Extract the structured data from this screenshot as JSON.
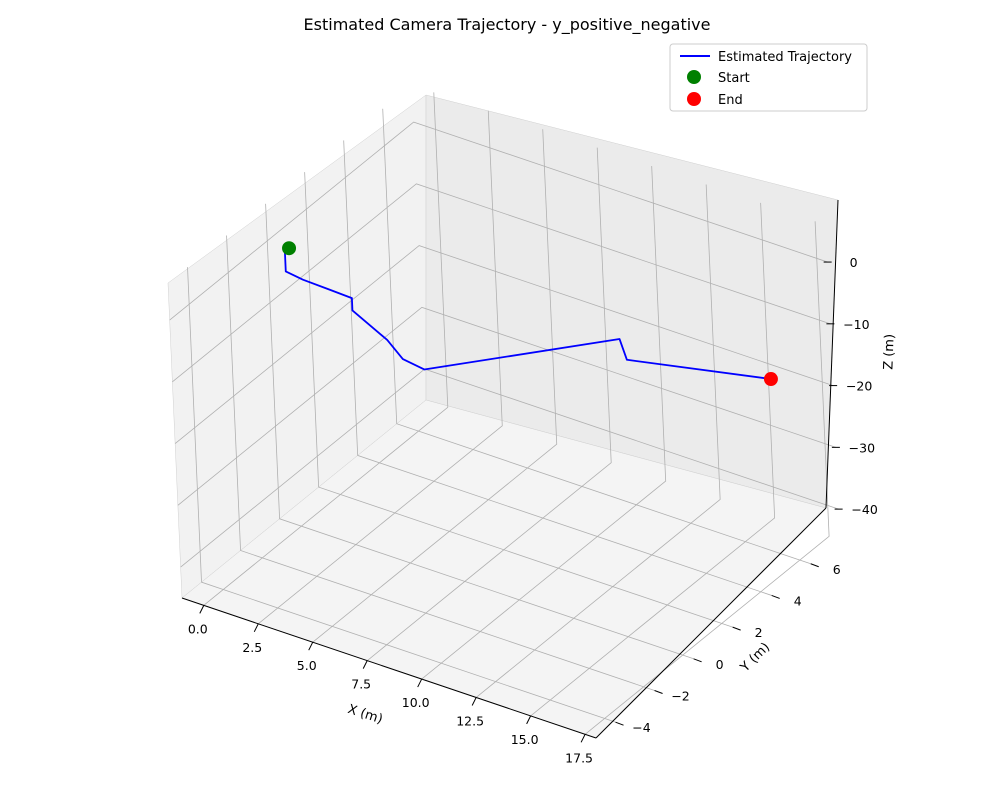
{
  "chart_data": {
    "type": "line3d",
    "title": "Estimated Camera Trajectory - y_positive_negative",
    "xlabel": "X (m)",
    "ylabel": "Y (m)",
    "zlabel": "Z (m)",
    "xlim": [
      -1,
      18
    ],
    "ylim": [
      -5,
      7.5
    ],
    "zlim": [
      -45,
      6
    ],
    "x_ticks": [
      "0.0",
      "2.5",
      "5.0",
      "7.5",
      "10.0",
      "12.5",
      "15.0",
      "17.5"
    ],
    "y_ticks": [
      "−4",
      "−2",
      "0",
      "2",
      "4",
      "6"
    ],
    "z_ticks": [
      "0",
      "−10",
      "−20",
      "−30",
      "−40"
    ],
    "grid": true,
    "legend_position": "top-right",
    "series": [
      {
        "name": "Estimated Trajectory",
        "color": "#0000ff",
        "points": [
          {
            "x": 0.0,
            "y": 0.0,
            "z": 0.0
          },
          {
            "x": -0.2,
            "y": 0.0,
            "z": -1.0
          },
          {
            "x": -0.2,
            "y": 0.0,
            "z": -4.0
          },
          {
            "x": 0.3,
            "y": 0.3,
            "z": -5.5
          },
          {
            "x": 1.0,
            "y": 0.8,
            "z": -7.5
          },
          {
            "x": 1.6,
            "y": 1.3,
            "z": -9.5
          },
          {
            "x": 1.6,
            "y": 1.3,
            "z": -11.5
          },
          {
            "x": 2.5,
            "y": 2.0,
            "z": -17.0
          },
          {
            "x": 3.0,
            "y": 2.2,
            "z": -20.0
          },
          {
            "x": 3.6,
            "y": 2.6,
            "z": -22.0
          },
          {
            "x": 10.5,
            "y": 5.0,
            "z": -15.0
          },
          {
            "x": 10.8,
            "y": 5.0,
            "z": -18.0
          },
          {
            "x": 17.0,
            "y": 5.5,
            "z": -15.0
          }
        ]
      }
    ],
    "markers": [
      {
        "name": "Start",
        "color": "#008000",
        "x": 0.0,
        "y": 0.0,
        "z": 0.0
      },
      {
        "name": "End",
        "color": "#ff0000",
        "x": 17.0,
        "y": 5.5,
        "z": -15.0
      }
    ]
  }
}
